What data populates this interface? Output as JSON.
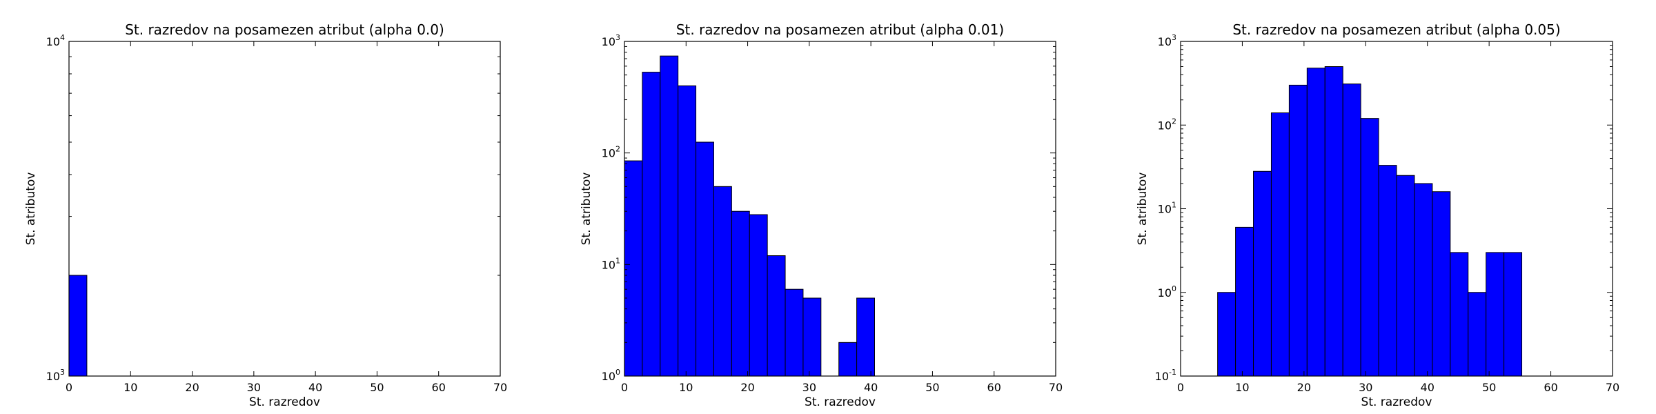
{
  "chart_data": [
    {
      "type": "bar",
      "title": "St. razredov na posamezen atribut (alpha 0.0)",
      "xlabel": "St. razredov",
      "ylabel": "St. atributov",
      "xlim": [
        0,
        70
      ],
      "xticks": [
        "0",
        "10",
        "20",
        "30",
        "40",
        "50",
        "60",
        "70"
      ],
      "ylim": [
        1000,
        10000
      ],
      "yscale": "log",
      "yticks": [
        {
          "base": "10",
          "exp": "3"
        },
        {
          "base": "10",
          "exp": "4"
        }
      ],
      "bins": [
        {
          "x0": 0,
          "x1": 2.9,
          "value": 2000
        }
      ],
      "grid": false
    },
    {
      "type": "bar",
      "title": "St. razredov na posamezen atribut (alpha 0.01)",
      "xlabel": "St. razredov",
      "ylabel": "St. atributov",
      "xlim": [
        0,
        70
      ],
      "xticks": [
        "0",
        "10",
        "20",
        "30",
        "40",
        "50",
        "60",
        "70"
      ],
      "ylim": [
        1,
        1000
      ],
      "yscale": "log",
      "yticks": [
        {
          "base": "10",
          "exp": "0"
        },
        {
          "base": "10",
          "exp": "1"
        },
        {
          "base": "10",
          "exp": "2"
        },
        {
          "base": "10",
          "exp": "3"
        }
      ],
      "bins": [
        {
          "x0": 0,
          "x1": 2.9,
          "value": 85
        },
        {
          "x0": 2.9,
          "x1": 5.8,
          "value": 530
        },
        {
          "x0": 5.8,
          "x1": 8.7,
          "value": 740
        },
        {
          "x0": 8.7,
          "x1": 11.6,
          "value": 400
        },
        {
          "x0": 11.6,
          "x1": 14.5,
          "value": 125
        },
        {
          "x0": 14.5,
          "x1": 17.4,
          "value": 50
        },
        {
          "x0": 17.4,
          "x1": 20.3,
          "value": 30
        },
        {
          "x0": 20.3,
          "x1": 23.2,
          "value": 28
        },
        {
          "x0": 23.2,
          "x1": 26.1,
          "value": 12
        },
        {
          "x0": 26.1,
          "x1": 29.0,
          "value": 6
        },
        {
          "x0": 29.0,
          "x1": 31.9,
          "value": 5
        },
        {
          "x0": 34.8,
          "x1": 37.7,
          "value": 2
        },
        {
          "x0": 37.7,
          "x1": 40.6,
          "value": 5
        }
      ],
      "grid": false
    },
    {
      "type": "bar",
      "title": "St. razredov na posamezen atribut (alpha 0.05)",
      "xlabel": "St. razredov",
      "ylabel": "St. atributov",
      "xlim": [
        0,
        70
      ],
      "xticks": [
        "0",
        "10",
        "20",
        "30",
        "40",
        "50",
        "60",
        "70"
      ],
      "ylim": [
        0.1,
        1000
      ],
      "yscale": "log",
      "yticks": [
        {
          "base": "10",
          "exp": "-1"
        },
        {
          "base": "10",
          "exp": "0"
        },
        {
          "base": "10",
          "exp": "1"
        },
        {
          "base": "10",
          "exp": "2"
        },
        {
          "base": "10",
          "exp": "3"
        }
      ],
      "bins": [
        {
          "x0": 6.0,
          "x1": 8.9,
          "value": 1
        },
        {
          "x0": 8.9,
          "x1": 11.8,
          "value": 6
        },
        {
          "x0": 11.8,
          "x1": 14.7,
          "value": 28
        },
        {
          "x0": 14.7,
          "x1": 17.6,
          "value": 140
        },
        {
          "x0": 17.6,
          "x1": 20.5,
          "value": 300
        },
        {
          "x0": 20.5,
          "x1": 23.4,
          "value": 480
        },
        {
          "x0": 23.4,
          "x1": 26.3,
          "value": 500
        },
        {
          "x0": 26.3,
          "x1": 29.2,
          "value": 310
        },
        {
          "x0": 29.2,
          "x1": 32.1,
          "value": 120
        },
        {
          "x0": 32.1,
          "x1": 35.0,
          "value": 33
        },
        {
          "x0": 35.0,
          "x1": 37.9,
          "value": 25
        },
        {
          "x0": 37.9,
          "x1": 40.8,
          "value": 20
        },
        {
          "x0": 40.8,
          "x1": 43.7,
          "value": 16
        },
        {
          "x0": 43.7,
          "x1": 46.6,
          "value": 3
        },
        {
          "x0": 46.6,
          "x1": 49.5,
          "value": 1
        },
        {
          "x0": 49.5,
          "x1": 52.4,
          "value": 3
        },
        {
          "x0": 52.4,
          "x1": 55.3,
          "value": 3
        }
      ],
      "grid": false
    }
  ],
  "colors": {
    "bar_fill": "#0000ff",
    "bar_edge": "#000000",
    "axes": "#000000",
    "background": "#ffffff"
  }
}
